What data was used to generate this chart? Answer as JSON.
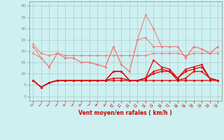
{
  "x": [
    0,
    1,
    2,
    3,
    4,
    5,
    6,
    7,
    8,
    9,
    10,
    11,
    12,
    13,
    14,
    15,
    16,
    17,
    18,
    19,
    20,
    21,
    22,
    23
  ],
  "series": [
    {
      "name": "light_flat",
      "color": "#f08080",
      "lw": 0.8,
      "marker": "o",
      "ms": 1.8,
      "values": [
        23,
        19,
        18,
        19,
        18,
        18,
        18,
        18,
        18,
        18,
        18,
        18,
        18,
        18,
        18,
        19,
        19,
        19,
        19,
        18,
        19,
        19,
        19,
        19
      ]
    },
    {
      "name": "light_spiky",
      "color": "#f08080",
      "lw": 0.8,
      "marker": "o",
      "ms": 1.8,
      "values": [
        22,
        17,
        13,
        19,
        17,
        17,
        15,
        15,
        14,
        13,
        22,
        14,
        11,
        25,
        36,
        30,
        22,
        22,
        22,
        17,
        22,
        21,
        19,
        22
      ]
    },
    {
      "name": "light_mid",
      "color": "#f08080",
      "lw": 0.8,
      "marker": "o",
      "ms": 1.8,
      "values": [
        19,
        17,
        13,
        19,
        17,
        17,
        15,
        15,
        14,
        13,
        22,
        14,
        11,
        25,
        26,
        22,
        22,
        22,
        22,
        17,
        22,
        21,
        19,
        22
      ]
    },
    {
      "name": "dark_top",
      "color": "#dd0000",
      "lw": 0.9,
      "marker": "o",
      "ms": 1.8,
      "values": [
        7,
        4,
        6,
        7,
        7,
        7,
        7,
        7,
        7,
        7,
        11,
        11,
        7,
        7,
        8,
        16,
        13,
        12,
        8,
        12,
        13,
        14,
        8,
        7
      ]
    },
    {
      "name": "dark_2",
      "color": "#dd0000",
      "lw": 0.9,
      "marker": "o",
      "ms": 1.8,
      "values": [
        7,
        4,
        6,
        7,
        7,
        7,
        7,
        7,
        7,
        7,
        11,
        11,
        7,
        7,
        8,
        11,
        12,
        11,
        8,
        11,
        12,
        13,
        8,
        7
      ]
    },
    {
      "name": "dark_3",
      "color": "#dd0000",
      "lw": 0.9,
      "marker": "o",
      "ms": 1.8,
      "values": [
        7,
        4,
        6,
        7,
        7,
        7,
        7,
        7,
        7,
        7,
        8,
        8,
        7,
        7,
        8,
        10,
        11,
        11,
        7,
        8,
        11,
        11,
        8,
        7
      ]
    },
    {
      "name": "dark_flat",
      "color": "#dd0000",
      "lw": 0.9,
      "marker": "o",
      "ms": 1.8,
      "values": [
        7,
        4,
        6,
        7,
        7,
        7,
        7,
        7,
        7,
        7,
        7,
        7,
        7,
        7,
        7,
        7,
        7,
        7,
        7,
        7,
        7,
        7,
        7,
        7
      ]
    }
  ],
  "xlabel": "Vent moyen/en rafales ( km/h )",
  "ylim": [
    -2,
    42
  ],
  "yticks": [
    0,
    5,
    10,
    15,
    20,
    25,
    30,
    35,
    40
  ],
  "xlim": [
    -0.5,
    23.5
  ],
  "xticks": [
    0,
    1,
    2,
    3,
    4,
    5,
    6,
    7,
    8,
    9,
    10,
    11,
    12,
    13,
    14,
    15,
    16,
    17,
    18,
    19,
    20,
    21,
    22,
    23
  ],
  "bg_color": "#cef0f0",
  "grid_color": "#aacccc",
  "xlabel_color": "#cc0000",
  "tick_color": "#cc0000",
  "ytick_color": "#888888"
}
